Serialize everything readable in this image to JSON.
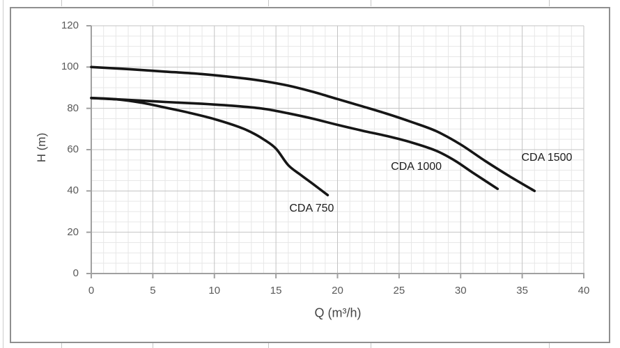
{
  "chart_data": {
    "type": "line",
    "title": "",
    "xlabel": "Q (m³/h)",
    "ylabel": "H (m)",
    "xlim": [
      0,
      40
    ],
    "ylim": [
      0,
      120
    ],
    "x_ticks": [
      0,
      5,
      10,
      15,
      20,
      25,
      30,
      35,
      40
    ],
    "y_ticks": [
      0,
      20,
      40,
      60,
      80,
      100,
      120
    ],
    "x_minor_step": 1,
    "y_minor_step": 5,
    "grid": "major and minor, light gray",
    "legend_position": "inline labels next to curves",
    "curve_color": "#161616",
    "series": [
      {
        "name": "CDA 750",
        "label_at": [
          17.9,
          31.5
        ],
        "points": [
          [
            0,
            85
          ],
          [
            2,
            84.4
          ],
          [
            4,
            82.8
          ],
          [
            6,
            80.4
          ],
          [
            8,
            77.8
          ],
          [
            10,
            74.8
          ],
          [
            12,
            71
          ],
          [
            13,
            68.4
          ],
          [
            14,
            65
          ],
          [
            15,
            60.5
          ],
          [
            16,
            52.5
          ],
          [
            17,
            47.8
          ],
          [
            18,
            43.4
          ],
          [
            19.2,
            38
          ]
        ]
      },
      {
        "name": "CDA 1000",
        "label_at": [
          26.4,
          51.5
        ],
        "points": [
          [
            0,
            85
          ],
          [
            3,
            84.1
          ],
          [
            6,
            83.1
          ],
          [
            9,
            82.2
          ],
          [
            12,
            81
          ],
          [
            14,
            79.8
          ],
          [
            16,
            77.6
          ],
          [
            18,
            75
          ],
          [
            20,
            72
          ],
          [
            22,
            69.2
          ],
          [
            24,
            66.6
          ],
          [
            26,
            63.5
          ],
          [
            28,
            59.5
          ],
          [
            29.5,
            54.8
          ],
          [
            31,
            48.8
          ],
          [
            33,
            41
          ]
        ]
      },
      {
        "name": "CDA 1500",
        "label_at": [
          37.0,
          56.0
        ],
        "points": [
          [
            0,
            100
          ],
          [
            3,
            99
          ],
          [
            6,
            97.8
          ],
          [
            9,
            96.6
          ],
          [
            12,
            94.8
          ],
          [
            14,
            93.2
          ],
          [
            16,
            91
          ],
          [
            18,
            88
          ],
          [
            20,
            84.5
          ],
          [
            22,
            81
          ],
          [
            24,
            77.4
          ],
          [
            26,
            73.4
          ],
          [
            28,
            69
          ],
          [
            30,
            62.5
          ],
          [
            32,
            54.5
          ],
          [
            34,
            47
          ],
          [
            36,
            40
          ]
        ]
      }
    ]
  }
}
